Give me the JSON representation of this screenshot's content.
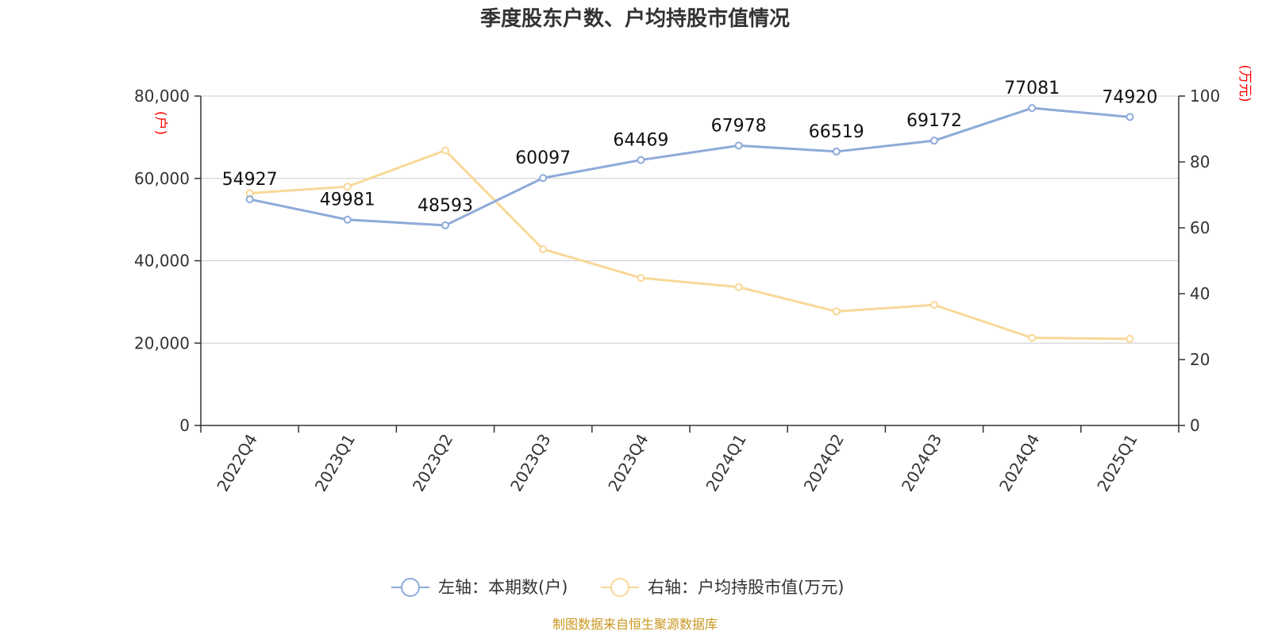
{
  "chart_data": {
    "type": "line",
    "title": "季度股东户数、户均持股市值情况",
    "categories": [
      "2022Q4",
      "2023Q1",
      "2023Q2",
      "2023Q3",
      "2023Q4",
      "2024Q1",
      "2024Q2",
      "2024Q3",
      "2024Q4",
      "2025Q1"
    ],
    "series": [
      {
        "name": "左轴：本期数(户)",
        "axis": "left",
        "color": "#8eaad9",
        "values": [
          54927,
          49981,
          48593,
          60097,
          64469,
          67978,
          66519,
          69172,
          77081,
          74920
        ],
        "data_labels": [
          "54927",
          "49981",
          "48593",
          "60097",
          "64469",
          "67978",
          "66519",
          "69172",
          "77081",
          "74920"
        ]
      },
      {
        "name": "右轴：户均持股市值(万元)",
        "axis": "right",
        "color": "#f9d898",
        "values": [
          70.5,
          72.5,
          83.5,
          53.5,
          44.8,
          42.0,
          34.6,
          36.6,
          26.6,
          26.3
        ]
      }
    ],
    "y_left": {
      "unit": "(户)",
      "range": [
        0,
        80000
      ],
      "ticks": [
        0,
        20000,
        40000,
        60000,
        80000
      ],
      "tick_labels": [
        "0",
        "20,000",
        "40,000",
        "60,000",
        "80,000"
      ]
    },
    "y_right": {
      "unit": "(万元)",
      "range": [
        0,
        100
      ],
      "ticks": [
        0,
        20,
        40,
        60,
        80,
        100
      ],
      "tick_labels": [
        "0",
        "20",
        "40",
        "60",
        "80",
        "100"
      ]
    },
    "grid": true,
    "legend_position": "bottom-center"
  },
  "source_text": "制图数据来自恒生聚源数据库",
  "colors": {
    "axis": "#333333",
    "grid": "#cccccc",
    "unit": "#ff0000",
    "source": "#c8961e"
  }
}
